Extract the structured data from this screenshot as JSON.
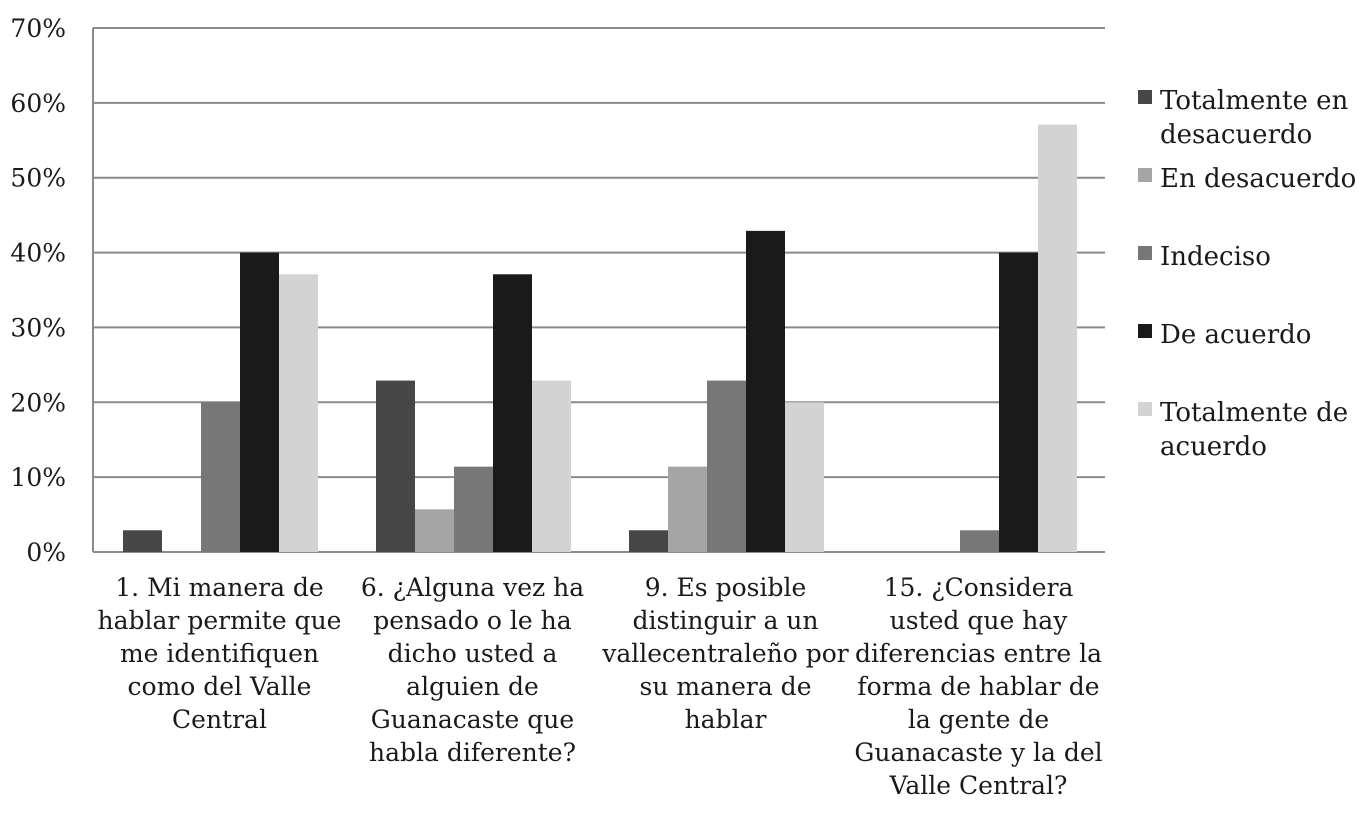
{
  "chart_data": {
    "type": "bar",
    "title": "",
    "xlabel": "",
    "ylabel": "",
    "ylim": [
      0,
      70
    ],
    "y_ticks": [
      "0%",
      "10%",
      "20%",
      "30%",
      "40%",
      "50%",
      "60%",
      "70%"
    ],
    "grid": "horizontal",
    "legend_position": "right",
    "categories": [
      "1. Mi manera de hablar permite que me identifiquen como del Valle Central",
      "6. ¿Alguna vez ha pensado o le ha dicho usted a alguien de Guanacaste que habla diferente?",
      "9. Es posible distinguir a un vallecentraleño por su manera de hablar",
      "15. ¿Considera usted que hay diferencias entre la forma de hablar de la gente de Guanacaste y la del Valle Central?"
    ],
    "category_lines": [
      [
        "1. Mi manera de",
        "hablar permite que",
        "me identifiquen",
        "como del Valle",
        "Central"
      ],
      [
        "6. ¿Alguna vez ha",
        "pensado o le ha",
        "dicho usted a",
        "alguien de",
        "Guanacaste que",
        "habla diferente?"
      ],
      [
        "9. Es posible",
        "distinguir a un",
        "vallecentraleño por",
        "su manera de",
        "hablar"
      ],
      [
        "15. ¿Considera",
        "usted que hay",
        "diferencias entre la",
        "forma de hablar de",
        "la gente de",
        "Guanacaste y la del",
        "Valle Central?"
      ]
    ],
    "series": [
      {
        "name": "Totalmente en desacuerdo",
        "legend_lines": [
          "Totalmente en",
          "desacuerdo"
        ],
        "color": "#474747",
        "values": [
          2.9,
          22.9,
          2.9,
          0
        ]
      },
      {
        "name": "En desacuerdo",
        "legend_lines": [
          "En desacuerdo"
        ],
        "color": "#a5a5a5",
        "values": [
          0,
          5.7,
          11.4,
          0
        ]
      },
      {
        "name": "Indeciso",
        "legend_lines": [
          "Indeciso"
        ],
        "color": "#777777",
        "values": [
          20,
          11.4,
          22.9,
          2.9
        ]
      },
      {
        "name": "De acuerdo",
        "legend_lines": [
          "De acuerdo"
        ],
        "color": "#1a1a1a",
        "values": [
          40,
          37.1,
          42.9,
          40
        ]
      },
      {
        "name": "Totalmente de acuerdo",
        "legend_lines": [
          "Totalmente de",
          "acuerdo"
        ],
        "color": "#d3d3d3",
        "values": [
          37.1,
          22.9,
          20,
          57.1
        ]
      }
    ]
  }
}
